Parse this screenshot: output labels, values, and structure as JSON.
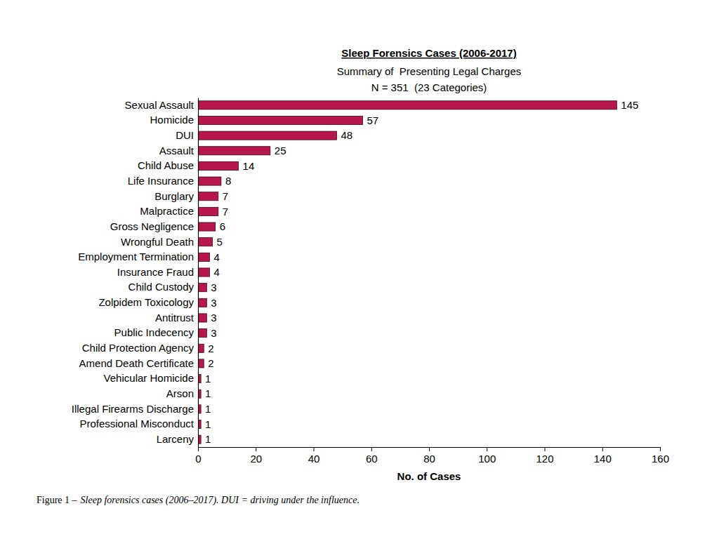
{
  "chart_data": {
    "type": "bar",
    "orientation": "horizontal",
    "title": "Sleep Forensics Cases (2006-2017)",
    "subtitle": [
      "Summary of  Presenting Legal Charges",
      "N = 351  (23 Categories)"
    ],
    "x_label": "No. of Cases",
    "caption": [
      "Figure 1 –",
      "Sleep forensics cases (2006–2017). DUI = driving under the influence."
    ],
    "categories": [
      "Sexual Assault",
      "Homicide",
      "DUI",
      "Assault",
      "Child Abuse",
      "Life Insurance",
      "Burglary",
      "Malpractice",
      "Gross Negligence",
      "Wrongful Death",
      "Employment Termination",
      "Insurance Fraud",
      "Child Custody",
      "Zolpidem Toxicology",
      "Antitrust",
      "Public Indecency",
      "Child Protection Agency",
      "Amend Death Certificate",
      "Vehicular Homicide",
      "Arson",
      "Illegal Firearms Discharge",
      "Professional Misconduct",
      "Larceny"
    ],
    "values": [
      145,
      57,
      48,
      25,
      14,
      8,
      7,
      7,
      6,
      5,
      4,
      4,
      3,
      3,
      3,
      3,
      2,
      2,
      1,
      1,
      1,
      1,
      1
    ],
    "color": "#b8174e",
    "xlim": [
      0,
      160
    ],
    "xticks": [
      0,
      20,
      40,
      60,
      80,
      100,
      120,
      140,
      160
    ],
    "data_labels": true
  }
}
